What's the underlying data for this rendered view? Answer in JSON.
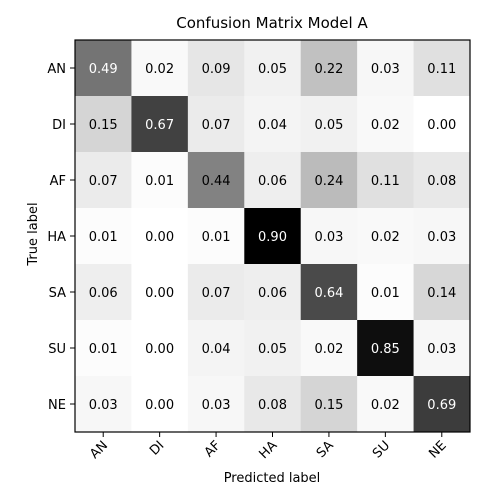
{
  "chart_data": {
    "type": "heatmap",
    "title": "Confusion Matrix Model A",
    "xlabel": "Predicted label",
    "ylabel": "True label",
    "x_categories": [
      "AN",
      "DI",
      "AF",
      "HA",
      "SA",
      "SU",
      "NE"
    ],
    "y_categories": [
      "AN",
      "DI",
      "AF",
      "HA",
      "SA",
      "SU",
      "NE"
    ],
    "values": [
      [
        0.49,
        0.02,
        0.09,
        0.05,
        0.22,
        0.03,
        0.11
      ],
      [
        0.15,
        0.67,
        0.07,
        0.04,
        0.05,
        0.02,
        0.0
      ],
      [
        0.07,
        0.01,
        0.44,
        0.06,
        0.24,
        0.11,
        0.08
      ],
      [
        0.01,
        0.0,
        0.01,
        0.9,
        0.03,
        0.02,
        0.03
      ],
      [
        0.06,
        0.0,
        0.07,
        0.06,
        0.64,
        0.01,
        0.14
      ],
      [
        0.01,
        0.0,
        0.04,
        0.05,
        0.02,
        0.85,
        0.03
      ],
      [
        0.03,
        0.0,
        0.03,
        0.08,
        0.15,
        0.02,
        0.69
      ]
    ],
    "value_range": [
      0,
      0.9
    ],
    "colormap": "grayscale (white = low, black = high)",
    "legend": "none",
    "grid": false
  }
}
